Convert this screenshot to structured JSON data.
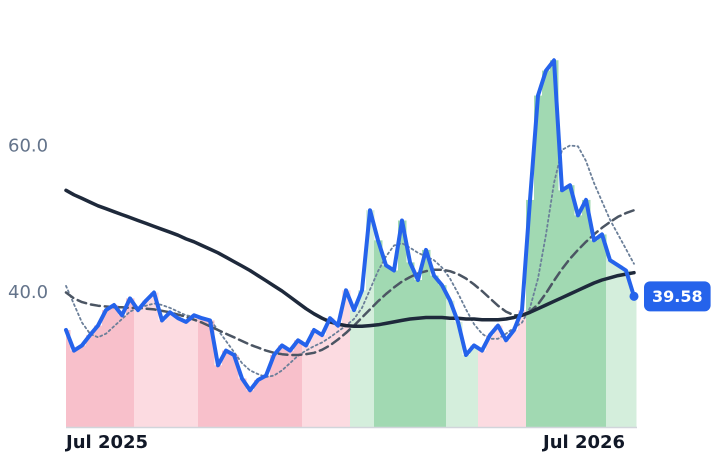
{
  "chart_data": {
    "type": "line",
    "categories": [
      "Jul 2025",
      null,
      null,
      null,
      null,
      null,
      null,
      null,
      null,
      null,
      null,
      null,
      null,
      null,
      null,
      null,
      null,
      null,
      null,
      null,
      null,
      null,
      null,
      null,
      null,
      null,
      null,
      null,
      null,
      null,
      null,
      null,
      null,
      null,
      null,
      null,
      null,
      null,
      null,
      null,
      null,
      null,
      null,
      null,
      null,
      null,
      null,
      null,
      null,
      null,
      null,
      null,
      null,
      null,
      null,
      null,
      null,
      null,
      null,
      null,
      "Jul 2026",
      null,
      null,
      null,
      null,
      null,
      null,
      null,
      null,
      null,
      null,
      null
    ],
    "ylim": [
      21.8,
      79.9
    ],
    "yticks": [
      {
        "value": 40,
        "label": "40.0"
      },
      {
        "value": 60,
        "label": "60.0"
      }
    ],
    "grid": false,
    "series": [
      {
        "color": "#2563eb",
        "style": "solid",
        "width": 4,
        "values": [
          35.0,
          32.2,
          32.9,
          34.3,
          35.6,
          37.7,
          38.4,
          37.0,
          39.3,
          37.7,
          39.0,
          40.1,
          36.3,
          37.4,
          36.6,
          36.1,
          37.0,
          36.6,
          36.3,
          30.2,
          32.2,
          31.6,
          28.4,
          26.8,
          28.2,
          28.8,
          31.6,
          32.9,
          32.2,
          33.6,
          32.9,
          35.0,
          34.3,
          36.6,
          35.6,
          40.4,
          37.7,
          40.4,
          51.3,
          47.2,
          43.8,
          43.1,
          49.9,
          44.2,
          41.8,
          45.9,
          42.4,
          41.1,
          39.0,
          36.1,
          31.6,
          32.9,
          32.2,
          34.3,
          35.6,
          33.6,
          35.0,
          37.7,
          52.7,
          66.9,
          70.3,
          71.7,
          54.0,
          54.7,
          50.6,
          52.7,
          47.2,
          48.0,
          44.5,
          43.8,
          43.1,
          39.58
        ],
        "area_colors": [
          "#f8c0cb",
          "#f8c0cb",
          "#f8c0cb",
          "#f8c0cb",
          "#f8c0cb",
          "#f8c0cb",
          "#f8c0cb",
          "#f8c0cb",
          "#f8c0cb",
          "#fcdbe1",
          "#fcdbe1",
          "#fcdbe1",
          "#fcdbe1",
          "#fcdbe1",
          "#fcdbe1",
          "#fcdbe1",
          "#fcdbe1",
          "#f8c0cb",
          "#f8c0cb",
          "#f8c0cb",
          "#f8c0cb",
          "#f8c0cb",
          "#f8c0cb",
          "#f8c0cb",
          "#f8c0cb",
          "#f8c0cb",
          "#f8c0cb",
          "#f8c0cb",
          "#f8c0cb",
          "#f8c0cb",
          "#fcdbe1",
          "#fcdbe1",
          "#fcdbe1",
          "#fcdbe1",
          "#fcdbe1",
          "#fcdbe1",
          "#d4eedc",
          "#d4eedc",
          "#d4eedc",
          "#a1d9b2",
          "#a1d9b2",
          "#a1d9b2",
          "#a1d9b2",
          "#a1d9b2",
          "#a1d9b2",
          "#a1d9b2",
          "#a1d9b2",
          "#a1d9b2",
          "#d4eedc",
          "#d4eedc",
          "#d4eedc",
          "#d4eedc",
          "#fcdbe1",
          "#fcdbe1",
          "#fcdbe1",
          "#fcdbe1",
          "#fcdbe1",
          "#fcdbe1",
          "#a1d9b2",
          "#a1d9b2",
          "#a1d9b2",
          "#a1d9b2",
          "#a1d9b2",
          "#a1d9b2",
          "#a1d9b2",
          "#a1d9b2",
          "#a1d9b2",
          "#a1d9b2",
          "#d4eedc",
          "#d4eedc",
          "#d4eedc",
          "#d4eedc"
        ]
      },
      {
        "color": "#1e293b",
        "style": "solid",
        "width": 3.5,
        "values": [
          54.0,
          53.4,
          52.9,
          52.4,
          51.9,
          51.5,
          51.1,
          50.7,
          50.3,
          49.9,
          49.5,
          49.1,
          48.7,
          48.3,
          47.9,
          47.4,
          47.0,
          46.5,
          46.0,
          45.5,
          44.9,
          44.3,
          43.7,
          43.1,
          42.4,
          41.7,
          41.0,
          40.3,
          39.5,
          38.7,
          37.9,
          37.2,
          36.6,
          36.1,
          35.8,
          35.6,
          35.5,
          35.5,
          35.6,
          35.7,
          35.9,
          36.1,
          36.3,
          36.5,
          36.6,
          36.7,
          36.7,
          36.7,
          36.6,
          36.6,
          36.5,
          36.5,
          36.4,
          36.4,
          36.4,
          36.5,
          36.7,
          37.0,
          37.4,
          37.9,
          38.4,
          38.9,
          39.4,
          39.9,
          40.4,
          40.9,
          41.4,
          41.8,
          42.1,
          42.4,
          42.6,
          42.8
        ]
      },
      {
        "color": "#4b5563",
        "style": "dashed",
        "width": 2.5,
        "values": [
          40.1,
          39.3,
          38.8,
          38.5,
          38.3,
          38.2,
          38.1,
          38.1,
          38.0,
          38.0,
          37.9,
          37.8,
          37.6,
          37.4,
          37.1,
          36.8,
          36.4,
          36.0,
          35.5,
          35.0,
          34.5,
          34.0,
          33.5,
          33.0,
          32.6,
          32.2,
          31.9,
          31.7,
          31.6,
          31.6,
          31.7,
          31.9,
          32.3,
          32.9,
          33.7,
          34.6,
          35.6,
          36.7,
          37.8,
          38.9,
          39.9,
          40.8,
          41.6,
          42.2,
          42.7,
          43.0,
          43.2,
          43.2,
          43.0,
          42.6,
          42.0,
          41.2,
          40.3,
          39.3,
          38.3,
          37.5,
          37.0,
          37.0,
          37.5,
          38.5,
          40.0,
          41.7,
          43.3,
          44.7,
          45.9,
          47.0,
          48.0,
          48.9,
          49.7,
          50.4,
          50.9,
          51.3
        ]
      },
      {
        "color": "#6b7f99",
        "style": "dotted",
        "width": 1.8,
        "values": [
          41.0,
          38.5,
          36.0,
          34.5,
          34.0,
          34.5,
          35.5,
          36.5,
          37.5,
          38.0,
          38.3,
          38.6,
          38.4,
          38.0,
          37.5,
          37.0,
          36.8,
          36.7,
          36.4,
          35.0,
          33.5,
          32.0,
          30.5,
          29.5,
          29.0,
          28.6,
          28.8,
          29.5,
          30.5,
          31.5,
          32.2,
          32.8,
          33.3,
          34.0,
          34.8,
          35.6,
          36.5,
          38.0,
          40.5,
          43.0,
          45.0,
          46.5,
          46.8,
          46.2,
          45.5,
          45.0,
          44.5,
          43.5,
          42.0,
          40.0,
          37.8,
          35.8,
          34.5,
          33.8,
          33.8,
          34.5,
          35.3,
          36.0,
          38.0,
          42.0,
          48.0,
          55.0,
          59.5,
          60.1,
          60.0,
          58.0,
          55.0,
          52.5,
          50.0,
          48.0,
          46.0,
          44.0
        ]
      }
    ]
  }
}
